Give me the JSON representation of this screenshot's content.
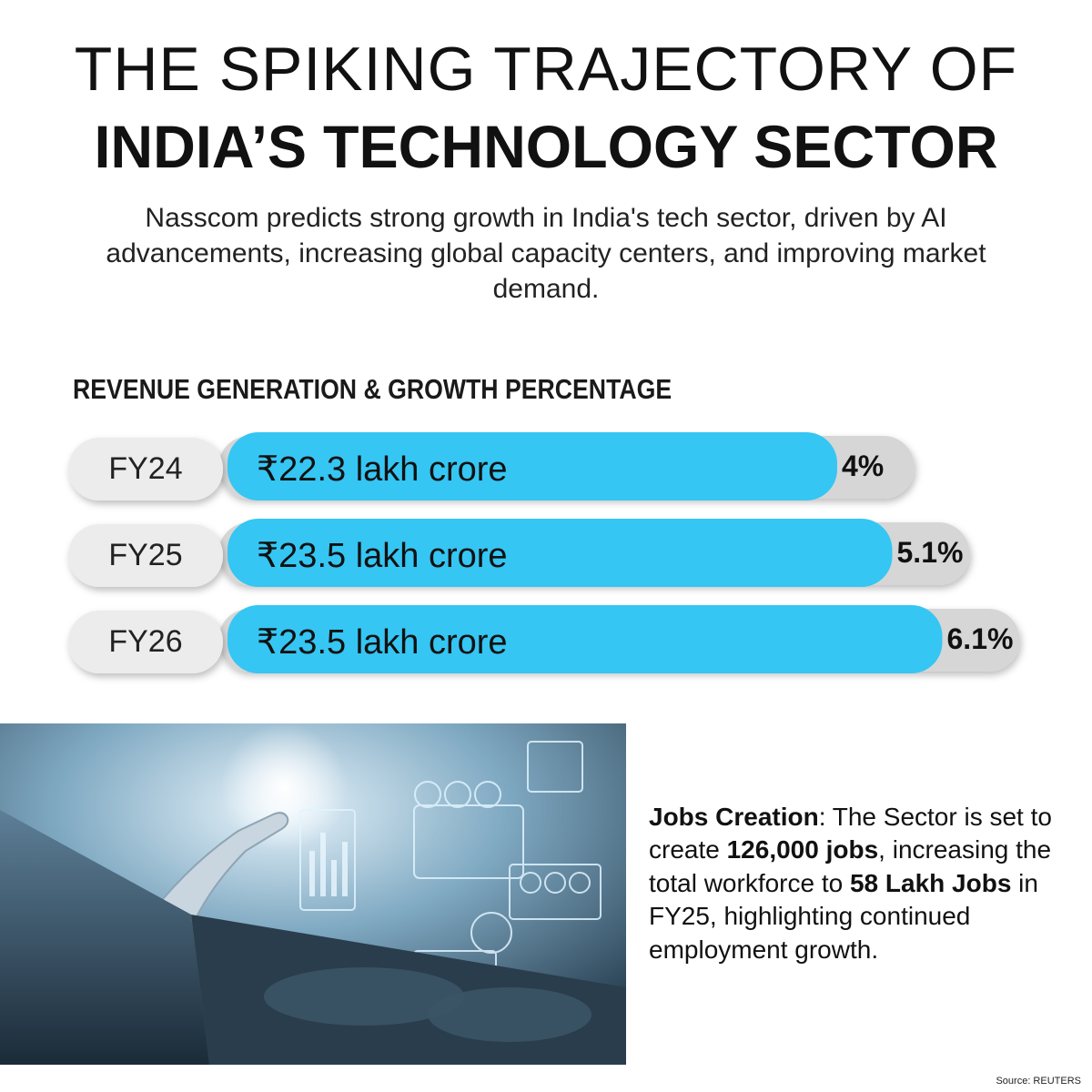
{
  "header": {
    "title_line1": "THE SPIKING TRAJECTORY OF",
    "title_line2": "INDIA’S TECHNOLOGY SECTOR",
    "subtitle": "Nasscom predicts strong growth in India's tech sector, driven by AI advancements, increasing global capacity centers, and improving market demand."
  },
  "colors": {
    "bar": "#35c6f3",
    "track": "#d6d6d6",
    "pill": "#ececec",
    "text": "#111111"
  },
  "chart_data": {
    "type": "bar",
    "title": "REVENUE GENERATION & GROWTH PERCENTAGE",
    "categories": [
      "FY24",
      "FY25",
      "FY26"
    ],
    "revenue_labels": [
      "₹22.3 lakh crore",
      "₹23.5 lakh crore",
      "₹23.5 lakh crore"
    ],
    "growth_percent": [
      4,
      5.1,
      6.1
    ],
    "growth_labels": [
      "4%",
      "5.1%",
      "6.1%"
    ],
    "xlabel": "",
    "ylabel": ""
  },
  "jobs": {
    "heading": "Jobs Creation",
    "sep": ": The Sector is set to create ",
    "jobs_count": "126,000 jobs",
    "middle": ", increasing the total workforce to ",
    "workforce": "58 Lakh Jobs",
    "end": " in FY25, highlighting continued employment growth."
  },
  "source": "Source: REUTERS"
}
